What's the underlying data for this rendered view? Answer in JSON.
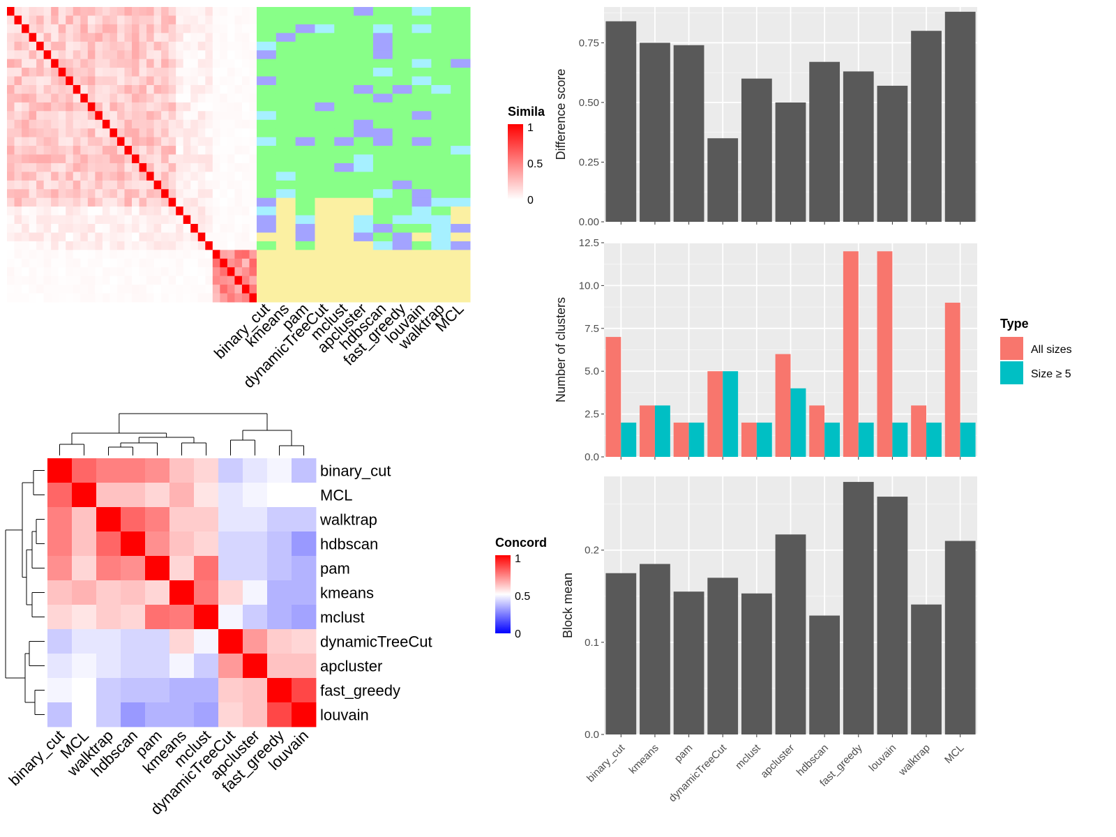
{
  "chart_data": [
    {
      "type": "heatmap",
      "name_hint": "term-similarity",
      "legend_title": "Simila",
      "legend_ticks": [
        "1",
        "0.5",
        "0"
      ],
      "x_labels": [
        "binary_cut",
        "kmeans",
        "pam",
        "dynamicTreeCut",
        "mclust",
        "apcluster",
        "hdbscan",
        "fast_greedy",
        "louvain",
        "walktrap",
        "MCL"
      ],
      "n_terms": 34,
      "block_start": 28,
      "colors": {
        "high": "#ff0000",
        "low": "#ffffff",
        "green": "#88ff88",
        "yellow": "#fbf0a2"
      }
    },
    {
      "type": "heatmap",
      "legend_title": "Concord",
      "legend_ticks": [
        "1",
        "0.5",
        "0"
      ],
      "row_labels": [
        "binary_cut",
        "MCL",
        "walktrap",
        "hdbscan",
        "pam",
        "kmeans",
        "mclust",
        "dynamicTreeCut",
        "apcluster",
        "fast_greedy",
        "louvain"
      ],
      "col_labels": [
        "binary_cut",
        "MCL",
        "walktrap",
        "hdbscan",
        "pam",
        "kmeans",
        "mclust",
        "dynamicTreeCut",
        "apcluster",
        "fast_greedy",
        "louvain"
      ],
      "matrix": [
        [
          1.0,
          0.8,
          0.75,
          0.75,
          0.72,
          0.62,
          0.58,
          0.4,
          0.45,
          0.48,
          0.38
        ],
        [
          0.8,
          1.0,
          0.62,
          0.62,
          0.58,
          0.65,
          0.55,
          0.45,
          0.48,
          0.5,
          0.5
        ],
        [
          0.75,
          0.62,
          1.0,
          0.8,
          0.75,
          0.6,
          0.6,
          0.45,
          0.45,
          0.4,
          0.4
        ],
        [
          0.75,
          0.62,
          0.8,
          1.0,
          0.72,
          0.62,
          0.58,
          0.42,
          0.42,
          0.38,
          0.3
        ],
        [
          0.72,
          0.58,
          0.75,
          0.72,
          1.0,
          0.58,
          0.78,
          0.42,
          0.42,
          0.38,
          0.35
        ],
        [
          0.62,
          0.65,
          0.6,
          0.62,
          0.58,
          1.0,
          0.76,
          0.58,
          0.48,
          0.35,
          0.35
        ],
        [
          0.58,
          0.55,
          0.6,
          0.58,
          0.78,
          0.76,
          1.0,
          0.48,
          0.4,
          0.35,
          0.32
        ],
        [
          0.4,
          0.45,
          0.45,
          0.42,
          0.42,
          0.58,
          0.48,
          1.0,
          0.7,
          0.6,
          0.58
        ],
        [
          0.45,
          0.48,
          0.45,
          0.42,
          0.42,
          0.48,
          0.4,
          0.7,
          1.0,
          0.62,
          0.62
        ],
        [
          0.48,
          0.5,
          0.4,
          0.38,
          0.38,
          0.35,
          0.35,
          0.6,
          0.62,
          1.0,
          0.86
        ],
        [
          0.38,
          0.5,
          0.4,
          0.3,
          0.35,
          0.35,
          0.32,
          0.58,
          0.62,
          0.86,
          1.0
        ]
      ],
      "colors": {
        "high": "#ff0000",
        "mid": "#ffffff",
        "low": "#0000ff"
      }
    },
    {
      "type": "bar",
      "categories": [
        "binary_cut",
        "kmeans",
        "pam",
        "dynamicTreeCut",
        "mclust",
        "apcluster",
        "hdbscan",
        "fast_greedy",
        "louvain",
        "walktrap",
        "MCL"
      ],
      "values": [
        0.84,
        0.75,
        0.74,
        0.35,
        0.6,
        0.5,
        0.67,
        0.63,
        0.57,
        0.8,
        0.88
      ],
      "ylabel": "Difference score",
      "ylim": [
        0,
        0.9
      ],
      "yticks": [
        "0.00",
        "0.25",
        "0.50",
        "0.75"
      ],
      "color": "#595959",
      "grid": true
    },
    {
      "type": "bar",
      "categories": [
        "binary_cut",
        "kmeans",
        "pam",
        "dynamicTreeCut",
        "mclust",
        "apcluster",
        "hdbscan",
        "fast_greedy",
        "louvain",
        "walktrap",
        "MCL"
      ],
      "series": [
        {
          "name": "All sizes",
          "values": [
            7,
            3,
            2,
            5,
            2,
            6,
            3,
            12,
            12,
            3,
            9
          ],
          "color": "#f8766d"
        },
        {
          "name": "Size ≥ 5",
          "values": [
            2,
            3,
            2,
            5,
            2,
            4,
            2,
            2,
            2,
            2,
            2
          ],
          "color": "#00bfc4"
        }
      ],
      "ylabel": "Number of clusters",
      "ylim": [
        0,
        12.5
      ],
      "yticks": [
        "0.0",
        "2.5",
        "5.0",
        "7.5",
        "10.0",
        "12.5"
      ],
      "legend_title": "Type",
      "legend_position": "right",
      "grid": true
    },
    {
      "type": "bar",
      "categories": [
        "binary_cut",
        "kmeans",
        "pam",
        "dynamicTreeCut",
        "mclust",
        "apcluster",
        "hdbscan",
        "fast_greedy",
        "louvain",
        "walktrap",
        "MCL"
      ],
      "values": [
        0.175,
        0.185,
        0.155,
        0.17,
        0.153,
        0.217,
        0.129,
        0.274,
        0.258,
        0.141,
        0.21
      ],
      "ylabel": "Block mean",
      "ylim": [
        0,
        0.28
      ],
      "yticks": [
        "0.0",
        "0.1",
        "0.2"
      ],
      "color": "#595959",
      "grid": true
    }
  ]
}
